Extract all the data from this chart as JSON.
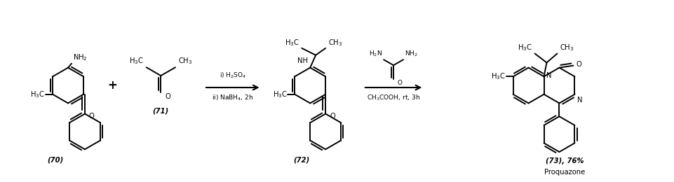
{
  "background": "#ffffff",
  "figsize": [
    9.62,
    2.6
  ],
  "dpi": 100,
  "lw": 1.4,
  "fs": 7.2,
  "fs_s": 6.5,
  "lc": "#000000",
  "c70_label": "(70)",
  "c71_label": "(71)",
  "c72_label": "(72)",
  "c73_label": "(73), 76%",
  "prq_label": "Proquazone",
  "arr1_top": "i) H$_2$SO$_4$",
  "arr1_bot": "ii) NaBH$_4$, 2h",
  "arr2_top_left": "H$_2$N",
  "arr2_top_right": "NH$_2$",
  "arr2_bot": "CH$_3$COOH, rt, 3h",
  "ring_r": 0.255,
  "dr_inner": 0.033
}
